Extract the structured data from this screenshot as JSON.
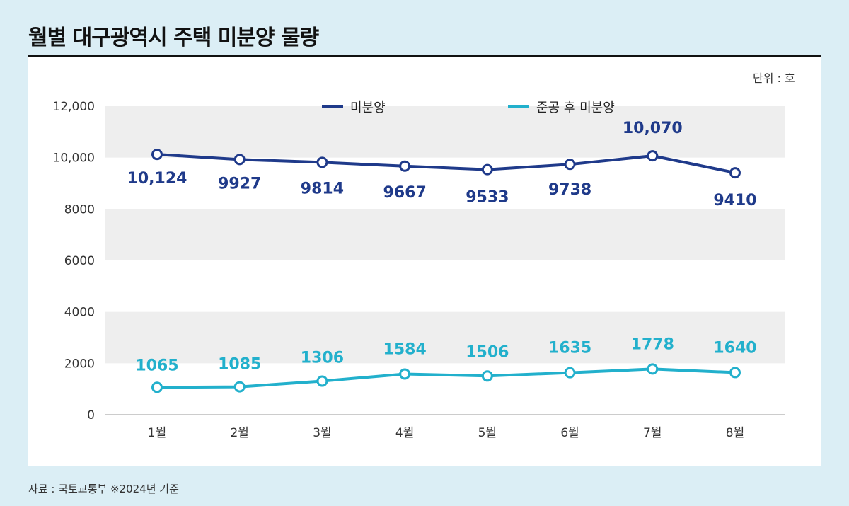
{
  "title": "월별 대구광역시 주택 미분양 물량",
  "unit": "단위 : 호",
  "source": "자료 : 국토교통부 ※2024년 기준",
  "colors": {
    "unsold": "#1f3a8a",
    "completed": "#22b0cc"
  },
  "chart_data": {
    "type": "line",
    "title": "월별 대구광역시 주택 미분양 물량",
    "categories": [
      "1월",
      "2월",
      "3월",
      "4월",
      "5월",
      "6월",
      "7월",
      "8월"
    ],
    "y_ticks": [
      "0",
      "2000",
      "4000",
      "6000",
      "8000",
      "10,000",
      "12,000"
    ],
    "ylim": [
      0,
      12000
    ],
    "legend_position": "top",
    "series": [
      {
        "name": "미분양",
        "values": [
          10124,
          9927,
          9814,
          9667,
          9533,
          9738,
          10070,
          9410
        ],
        "labels": [
          "10,124",
          "9927",
          "9814",
          "9667",
          "9533",
          "9738",
          "10,070",
          "9410"
        ]
      },
      {
        "name": "준공 후 미분양",
        "values": [
          1065,
          1085,
          1306,
          1584,
          1506,
          1635,
          1778,
          1640
        ],
        "labels": [
          "1065",
          "1085",
          "1306",
          "1584",
          "1506",
          "1635",
          "1778",
          "1640"
        ]
      }
    ]
  }
}
